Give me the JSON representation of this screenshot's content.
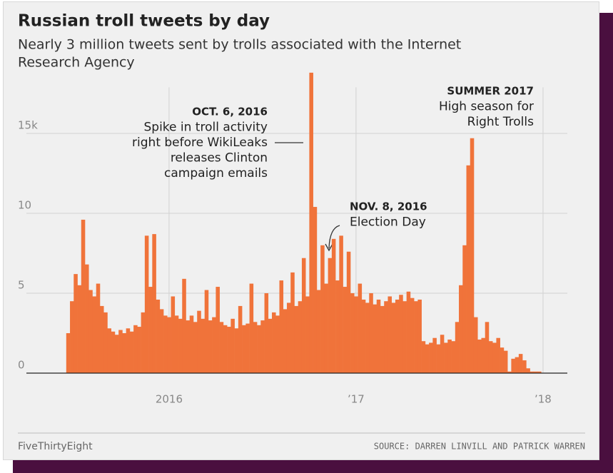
{
  "chart_data": {
    "type": "bar",
    "title": "Russian troll tweets by day",
    "subtitle": [
      "Nearly 3 million tweets sent by trolls associated with the Internet",
      "Research Agency"
    ],
    "color": "#f0733a",
    "x": [
      2015.46,
      2015.48,
      2015.5,
      2015.52,
      2015.54,
      2015.56,
      2015.58,
      2015.6,
      2015.62,
      2015.64,
      2015.66,
      2015.68,
      2015.7,
      2015.72,
      2015.74,
      2015.76,
      2015.78,
      2015.8,
      2015.82,
      2015.84,
      2015.86,
      2015.88,
      2015.9,
      2015.92,
      2015.94,
      2015.96,
      2015.98,
      2016.0,
      2016.02,
      2016.04,
      2016.06,
      2016.08,
      2016.1,
      2016.12,
      2016.14,
      2016.16,
      2016.18,
      2016.2,
      2016.22,
      2016.24,
      2016.26,
      2016.28,
      2016.3,
      2016.32,
      2016.34,
      2016.36,
      2016.38,
      2016.4,
      2016.42,
      2016.44,
      2016.46,
      2016.48,
      2016.5,
      2016.52,
      2016.54,
      2016.56,
      2016.58,
      2016.6,
      2016.62,
      2016.64,
      2016.66,
      2016.68,
      2016.7,
      2016.72,
      2016.74,
      2016.76,
      2016.78,
      2016.8,
      2016.82,
      2016.84,
      2016.86,
      2016.88,
      2016.9,
      2016.92,
      2016.94,
      2016.96,
      2016.98,
      2017.0,
      2017.02,
      2017.04,
      2017.06,
      2017.08,
      2017.1,
      2017.12,
      2017.14,
      2017.16,
      2017.18,
      2017.2,
      2017.22,
      2017.24,
      2017.26,
      2017.28,
      2017.3,
      2017.32,
      2017.34,
      2017.36,
      2017.38,
      2017.4,
      2017.42,
      2017.44,
      2017.46,
      2017.48,
      2017.5,
      2017.52,
      2017.54,
      2017.56,
      2017.58,
      2017.6,
      2017.62,
      2017.64,
      2017.66,
      2017.68,
      2017.7,
      2017.72,
      2017.74,
      2017.76,
      2017.78,
      2017.8,
      2017.82,
      2017.84,
      2017.86,
      2017.88,
      2017.9,
      2017.92,
      2017.94,
      2017.96,
      2017.98
    ],
    "values": [
      2.5,
      4.5,
      6.2,
      5.5,
      9.6,
      6.8,
      5.2,
      4.8,
      5.6,
      4.2,
      3.8,
      2.8,
      2.6,
      2.4,
      2.7,
      2.5,
      2.8,
      2.6,
      3.0,
      2.9,
      3.8,
      8.6,
      5.4,
      8.7,
      4.6,
      4.0,
      3.6,
      3.5,
      4.8,
      3.6,
      3.4,
      5.9,
      3.3,
      3.6,
      3.2,
      3.9,
      3.4,
      5.2,
      3.3,
      3.5,
      5.4,
      3.2,
      3.0,
      2.9,
      3.4,
      2.8,
      4.2,
      3.0,
      3.1,
      5.6,
      3.2,
      3.0,
      3.3,
      5.0,
      3.4,
      3.8,
      3.6,
      5.8,
      4.0,
      4.4,
      6.3,
      4.2,
      4.5,
      7.2,
      4.8,
      18.8,
      10.4,
      5.2,
      8.0,
      5.6,
      7.2,
      8.4,
      5.8,
      8.6,
      5.4,
      7.6,
      5.0,
      4.8,
      5.6,
      4.6,
      4.4,
      5.0,
      4.3,
      4.6,
      4.2,
      4.5,
      4.8,
      4.4,
      4.6,
      4.9,
      4.5,
      5.1,
      4.7,
      4.5,
      4.6,
      2.0,
      1.8,
      1.9,
      2.2,
      1.8,
      2.4,
      1.9,
      2.1,
      2.0,
      3.2,
      5.5,
      8.0,
      13.0,
      14.7,
      3.5,
      2.1,
      2.2,
      3.2,
      2.0,
      1.9,
      2.2,
      1.6,
      1.4,
      0.1,
      0.9,
      1.0,
      1.2,
      0.8,
      0.3,
      0.1,
      0.1,
      0.1
    ],
    "xlim": [
      2015.237,
      2018.13
    ],
    "xticks": [
      {
        "value": 2016,
        "label": "2016"
      },
      {
        "value": 2017,
        "label": "’17"
      },
      {
        "value": 2018,
        "label": "’18"
      }
    ],
    "ylim": [
      0,
      19
    ],
    "yticks": [
      0,
      5,
      10,
      {
        "value": 15,
        "label": "15k"
      }
    ],
    "grid": true,
    "annotations": [
      {
        "heading": "OCT. 6, 2016",
        "lines": [
          "Spike in troll activity",
          "right before WikiLeaks",
          "releases Clinton",
          "campaign emails"
        ]
      },
      {
        "heading": "NOV. 8, 2016",
        "lines": [
          "Election Day"
        ]
      },
      {
        "heading": "SUMMER 2017",
        "lines": [
          "High season for",
          "Right Trolls"
        ]
      }
    ],
    "footer_left": "FiveThirtyEight",
    "footer_right": "SOURCE: DARREN LINVILL AND PATRICK WARREN"
  }
}
